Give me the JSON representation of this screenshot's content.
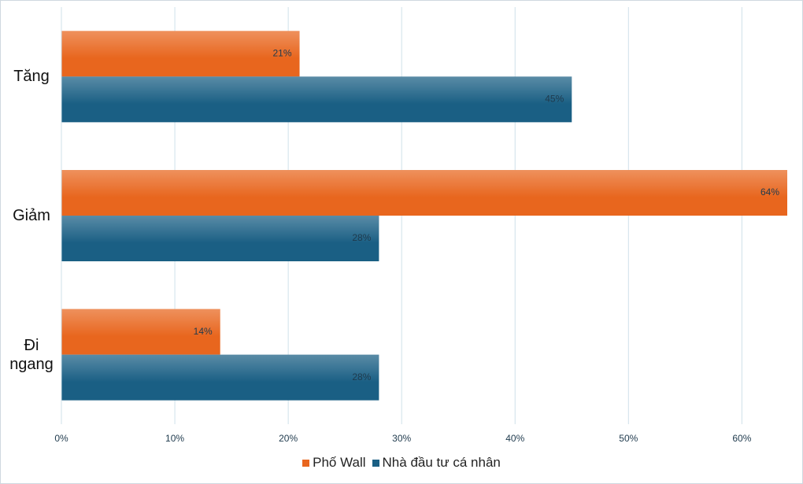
{
  "chart_data": {
    "type": "bar",
    "orientation": "horizontal",
    "categories": [
      "Tăng",
      "Giảm",
      "Đi ngang"
    ],
    "series": [
      {
        "name": "Phố Wall",
        "color": "#e8661e",
        "values": [
          21,
          64,
          14
        ],
        "value_labels": [
          "21%",
          "64%",
          "14%"
        ]
      },
      {
        "name": "Nhà đầu tư cá nhân",
        "color": "#1a5f84",
        "values": [
          45,
          28,
          28
        ],
        "value_labels": [
          "45%",
          "28%",
          "28%"
        ]
      }
    ],
    "xlim": [
      0,
      64
    ],
    "xticks": [
      {
        "value": 0,
        "label": "0%"
      },
      {
        "value": 10,
        "label": "10%"
      },
      {
        "value": 20,
        "label": "20%"
      },
      {
        "value": 30,
        "label": "30%"
      },
      {
        "value": 40,
        "label": "40%"
      },
      {
        "value": 50,
        "label": "50%"
      },
      {
        "value": 60,
        "label": "60%"
      }
    ],
    "grid": true,
    "legend": "bottom"
  }
}
